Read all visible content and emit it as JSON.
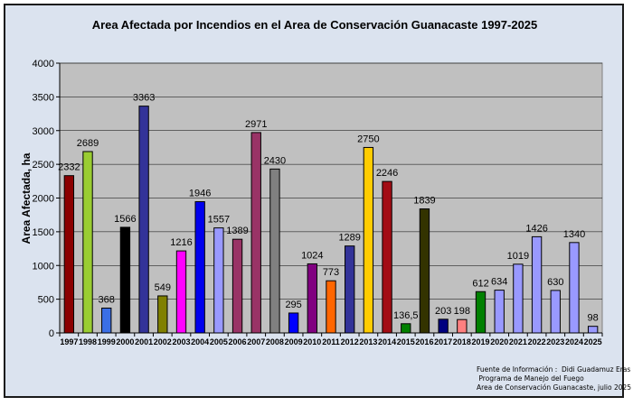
{
  "chart_data": {
    "type": "bar",
    "title": "Area Afectada por Incendios en el Area de Conservación Guanacaste 1997-2025",
    "xlabel": "",
    "ylabel": "Area Afectada, ha",
    "ylim": [
      0,
      4000
    ],
    "yticks": [
      0,
      500,
      1000,
      1500,
      2000,
      2500,
      3000,
      3500,
      4000
    ],
    "grid": true,
    "categories": [
      "1997",
      "1998",
      "1999",
      "2000",
      "2001",
      "2002",
      "2003",
      "2004",
      "2005",
      "2006",
      "2007",
      "2008",
      "2009",
      "2010",
      "2011",
      "2012",
      "2013",
      "2014",
      "2015",
      "2016",
      "2017",
      "2018",
      "2019",
      "2020",
      "2021",
      "2022",
      "2023",
      "2024",
      "2025"
    ],
    "values": [
      2332,
      2689,
      368,
      1566,
      3363,
      549,
      1216,
      1946,
      1557,
      1389,
      2971,
      2430,
      295,
      1024,
      773,
      1289,
      2750,
      2246,
      136.5,
      1839,
      203,
      198,
      612,
      634,
      1019,
      1426,
      630,
      1340,
      98
    ],
    "value_labels": [
      "2332",
      "2689",
      "368",
      "1566",
      "3363",
      "549",
      "1216",
      "1946",
      "1557",
      "1389",
      "2971",
      "2430",
      "295",
      "1024",
      "773",
      "1289",
      "2750",
      "2246",
      "136,5",
      "1839",
      "203",
      "198",
      "612",
      "634",
      "1019",
      "1426",
      "630",
      "1340",
      "98"
    ],
    "colors": [
      "#8b0000",
      "#9acd32",
      "#3b6fe6",
      "#000000",
      "#333399",
      "#808000",
      "#ff00ff",
      "#0000ee",
      "#9999ff",
      "#993366",
      "#993366",
      "#808080",
      "#0000ff",
      "#800080",
      "#ff6600",
      "#333399",
      "#ffcc00",
      "#a30d15",
      "#008000",
      "#333300",
      "#000080",
      "#ff8080",
      "#008000",
      "#9999ff",
      "#9999ff",
      "#9999ff",
      "#9999ff",
      "#9999ff",
      "#9999ff"
    ]
  },
  "source": {
    "line1": "Fuente de Información :  Didi Guadamuz Eras",
    "line2": " Programa de Manejo del Fuego",
    "line3": "Area de Conservación Guanacaste, julio 2025"
  }
}
